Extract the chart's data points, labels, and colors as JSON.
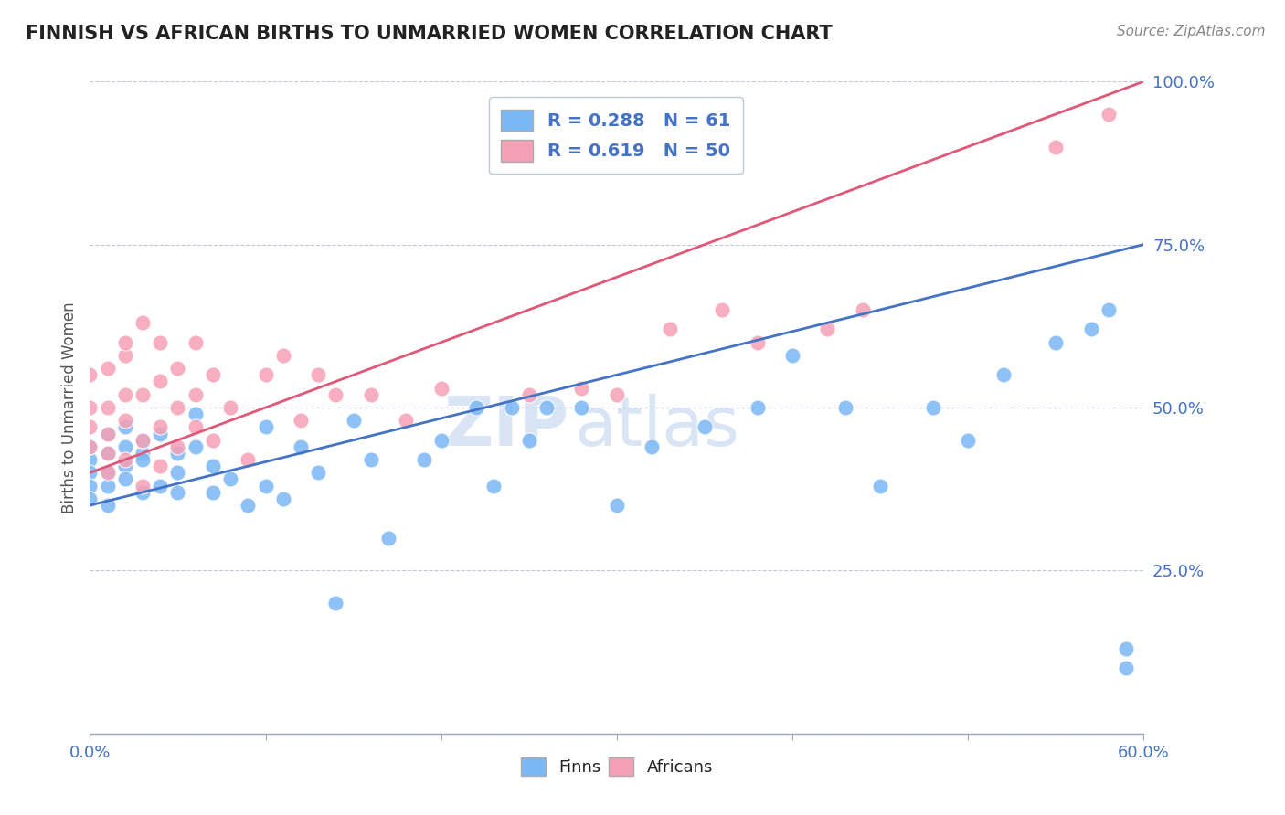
{
  "title": "FINNISH VS AFRICAN BIRTHS TO UNMARRIED WOMEN CORRELATION CHART",
  "source": "Source: ZipAtlas.com",
  "ylabel": "Births to Unmarried Women",
  "finn_scatter_color": "#7ab8f5",
  "african_scatter_color": "#f5a0b5",
  "finn_line_color": "#4472c4",
  "african_line_color": "#e05878",
  "watermark_zip": "ZIP",
  "watermark_atlas": "atlas",
  "watermark_color_zip": "#c8d8f0",
  "watermark_color_atlas": "#c8d8f0",
  "finn_R": 0.288,
  "finn_N": 61,
  "african_R": 0.619,
  "african_N": 50,
  "xlim": [
    0.0,
    0.6
  ],
  "ylim": [
    0.0,
    1.0
  ],
  "background_color": "#ffffff",
  "grid_color": "#c0c8d8",
  "finn_line_x0": 0.0,
  "finn_line_y0": 0.35,
  "finn_line_x1": 0.6,
  "finn_line_y1": 0.75,
  "african_line_x0": 0.0,
  "african_line_y0": 0.4,
  "african_line_x1": 0.6,
  "african_line_y1": 1.0,
  "finn_x": [
    0.0,
    0.0,
    0.0,
    0.0,
    0.0,
    0.01,
    0.01,
    0.01,
    0.01,
    0.01,
    0.02,
    0.02,
    0.02,
    0.02,
    0.03,
    0.03,
    0.03,
    0.03,
    0.04,
    0.04,
    0.05,
    0.05,
    0.05,
    0.06,
    0.06,
    0.07,
    0.07,
    0.08,
    0.09,
    0.1,
    0.1,
    0.11,
    0.12,
    0.13,
    0.14,
    0.15,
    0.16,
    0.17,
    0.19,
    0.2,
    0.22,
    0.23,
    0.24,
    0.25,
    0.26,
    0.28,
    0.3,
    0.32,
    0.35,
    0.38,
    0.4,
    0.43,
    0.45,
    0.48,
    0.5,
    0.52,
    0.55,
    0.57,
    0.58,
    0.59,
    0.59
  ],
  "finn_y": [
    0.42,
    0.44,
    0.4,
    0.38,
    0.36,
    0.43,
    0.46,
    0.4,
    0.35,
    0.38,
    0.44,
    0.47,
    0.41,
    0.39,
    0.43,
    0.37,
    0.45,
    0.42,
    0.38,
    0.46,
    0.4,
    0.43,
    0.37,
    0.44,
    0.49,
    0.37,
    0.41,
    0.39,
    0.35,
    0.38,
    0.47,
    0.36,
    0.44,
    0.4,
    0.2,
    0.48,
    0.42,
    0.3,
    0.42,
    0.45,
    0.5,
    0.38,
    0.5,
    0.45,
    0.5,
    0.5,
    0.35,
    0.44,
    0.47,
    0.5,
    0.58,
    0.5,
    0.38,
    0.5,
    0.45,
    0.55,
    0.6,
    0.62,
    0.65,
    0.1,
    0.13
  ],
  "african_x": [
    0.0,
    0.0,
    0.0,
    0.0,
    0.01,
    0.01,
    0.01,
    0.01,
    0.01,
    0.02,
    0.02,
    0.02,
    0.02,
    0.02,
    0.03,
    0.03,
    0.03,
    0.03,
    0.04,
    0.04,
    0.04,
    0.04,
    0.05,
    0.05,
    0.05,
    0.06,
    0.06,
    0.06,
    0.07,
    0.07,
    0.08,
    0.09,
    0.1,
    0.11,
    0.12,
    0.13,
    0.14,
    0.16,
    0.18,
    0.2,
    0.25,
    0.28,
    0.3,
    0.33,
    0.36,
    0.38,
    0.42,
    0.44,
    0.55,
    0.58
  ],
  "african_y": [
    0.44,
    0.47,
    0.5,
    0.55,
    0.43,
    0.46,
    0.4,
    0.5,
    0.56,
    0.42,
    0.48,
    0.58,
    0.6,
    0.52,
    0.38,
    0.45,
    0.52,
    0.63,
    0.41,
    0.47,
    0.54,
    0.6,
    0.5,
    0.56,
    0.44,
    0.47,
    0.52,
    0.6,
    0.45,
    0.55,
    0.5,
    0.42,
    0.55,
    0.58,
    0.48,
    0.55,
    0.52,
    0.52,
    0.48,
    0.53,
    0.52,
    0.53,
    0.52,
    0.62,
    0.65,
    0.6,
    0.62,
    0.65,
    0.9,
    0.95
  ]
}
